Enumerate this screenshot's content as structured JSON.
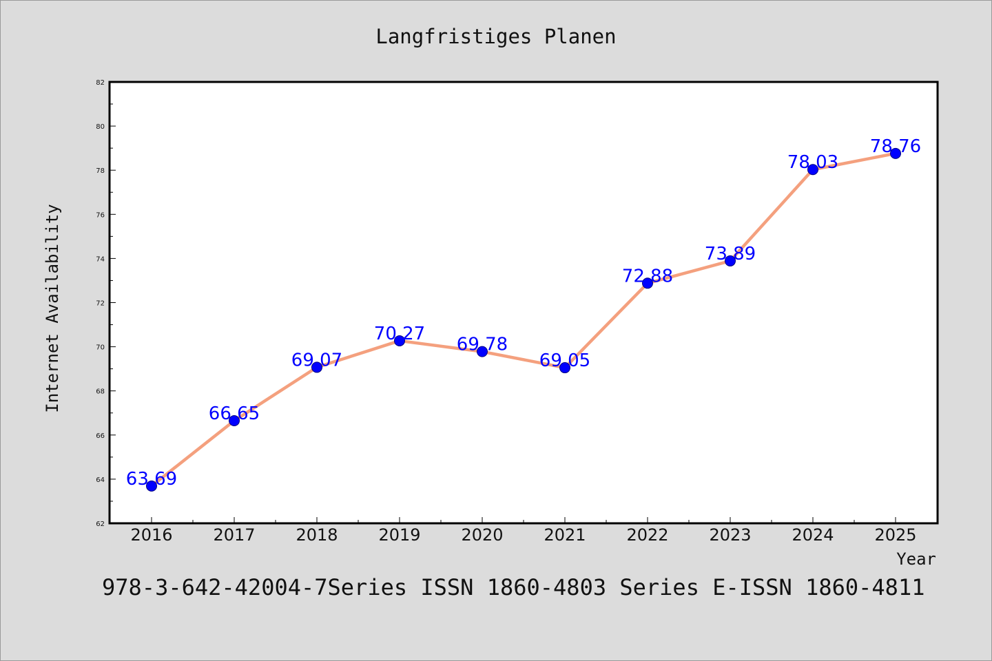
{
  "chart_data": {
    "type": "line",
    "title": "Langfristiges Planen",
    "xlabel": "Year",
    "ylabel": "Internet Availability",
    "categories": [
      "2016",
      "2017",
      "2018",
      "2019",
      "2020",
      "2021",
      "2022",
      "2023",
      "2024",
      "2025"
    ],
    "series": [
      {
        "values": [
          63.69,
          66.65,
          69.07,
          70.27,
          69.78,
          69.05,
          72.88,
          73.89,
          78.03,
          78.76
        ],
        "line_color": "#f4a07e",
        "marker_color": "#0000ff"
      }
    ],
    "data_labels": [
      "63.69",
      "66.65",
      "69.07",
      "70.27",
      "69.78",
      "69.05",
      "72.88",
      "73.89",
      "78.03",
      "78.76"
    ],
    "ylim": [
      62,
      82
    ],
    "yticks": [
      62,
      64,
      66,
      68,
      70,
      72,
      74,
      76,
      78,
      80,
      82
    ],
    "ytick_labels": [
      "62",
      "64",
      "66",
      "68",
      "70",
      "72",
      "74",
      "76",
      "78",
      "80",
      "82"
    ],
    "grid": false,
    "footer": "978-3-642-42004-7Series ISSN 1860-4803 Series E-ISSN 1860-4811"
  }
}
